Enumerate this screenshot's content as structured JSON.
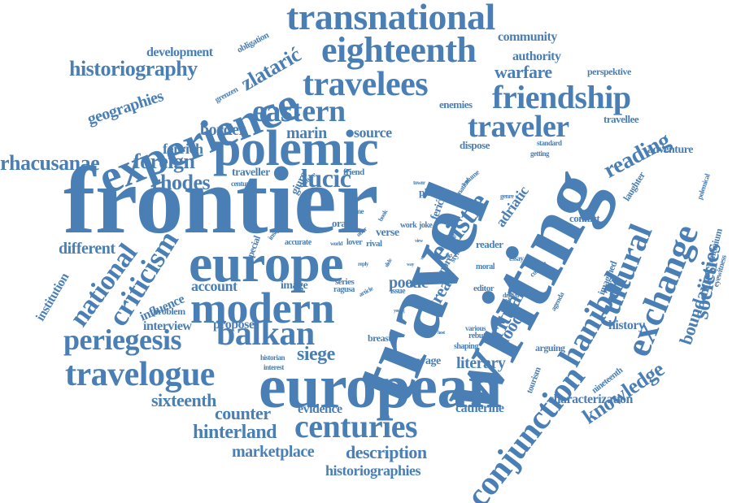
{
  "color": "#4a7fb5",
  "words": {
    "frontier": "frontier",
    "travel": "travel",
    "writing": "writing",
    "european": "european",
    "europe": "europe",
    "polemic": "polemic",
    "modern": "modern",
    "experience": "experience",
    "transnational": "transnational",
    "eighteenth": "eighteenth",
    "travelees": "travelees",
    "friendship": "friendship",
    "eastern": "eastern",
    "traveler": "traveler",
    "exchange": "exchange",
    "conjunction": "conjunction",
    "cultural": "cultural",
    "hanibal": "hanibal",
    "epistle": "epistle",
    "centuries": "centuries",
    "balkan": "balkan",
    "travelogue": "travelogue",
    "periegesis": "periegesis",
    "criticism": "criticism",
    "national": "national",
    "societies": "societies",
    "reading": "reading",
    "boundaries": "boundaries",
    "knowledge": "knowledge",
    "rhacusanae": "rhacusanae",
    "foreign": "foreign",
    "rhodes": "rhodes",
    "lucic": "lucić",
    "zlataric": "zlatarić",
    "historiography": "historiography",
    "geographies": "geographies",
    "development": "development",
    "community": "community",
    "authority": "authority",
    "warfare": "warfare",
    "perspektive": "perspektive",
    "border": "border",
    "marin": "marin",
    "source": "source",
    "ferrich": "ferrich",
    "adventure": "adventure",
    "travellee": "travellee",
    "blood": "blood",
    "ritual": "ritual",
    "great": "great",
    "literary": "literary",
    "siege": "siege",
    "history": "history",
    "conflict": "conflict",
    "laughter": "laughter",
    "characterization": "characterization",
    "hinterland": "hinterland",
    "marketplace": "marketplace",
    "description": "description",
    "historiographies": "historiographies",
    "sixteenth": "sixteenth",
    "counter": "counter",
    "evidence": "evidence",
    "catherine": "catherine",
    "account": "account",
    "influence": "influence",
    "interview": "interview",
    "propose": "propose",
    "problem": "problem",
    "institution": "institution",
    "different": "different",
    "special": "special",
    "insight": "insight",
    "image": "image",
    "series": "series",
    "ragusa": "ragusa",
    "article": "article",
    "reply": "reply",
    "poetic": "poetic",
    "verse": "verse",
    "accurate": "accurate",
    "orae": "orae",
    "world": "world",
    "lover": "lover",
    "rival": "rival",
    "more": "more",
    "style": "style",
    "moral": "moral",
    "essay": "essay",
    "context": "context",
    "reader": "reader",
    "place": "place",
    "ferich": "ferić",
    "adriatic": "adriatic",
    "dispose": "dispose",
    "standard": "standard",
    "getting": "getting",
    "traveller": "traveller",
    "enemies": "enemies",
    "obligation": "obligation",
    "grenzen": "grenzen",
    "giuro": "giuro",
    "culture": "culture",
    "century": "century",
    "friend": "friend",
    "time": "time",
    "letter": "letter",
    "offer": "offer",
    "book": "book",
    "work": "work",
    "joke": "joke",
    "view": "view",
    "tower": "tower",
    "nation": "nation",
    "volume": "volume",
    "basis": "basis",
    "genre": "genre",
    "tourism": "tourism",
    "nineteenth": "nineteenth",
    "eyewitness": "eyewitness",
    "confinium": "confinium",
    "polemical": "polemical",
    "imagined": "imagined",
    "arguing": "arguing",
    "agenda": "agenda",
    "editor": "editor",
    "drawn": "drawn",
    "lovrich": "lovrich",
    "various": "various",
    "rebuttal": "rebuttal",
    "shaping": "shaping",
    "breast": "breast",
    "savage": "savage",
    "issue": "issue",
    "young": "young",
    "historian": "historian",
    "interest": "interest",
    "slide": "slide",
    "way": "way",
    "nach": "nach",
    "fact": "fact",
    "state": "state",
    "host": "host"
  }
}
